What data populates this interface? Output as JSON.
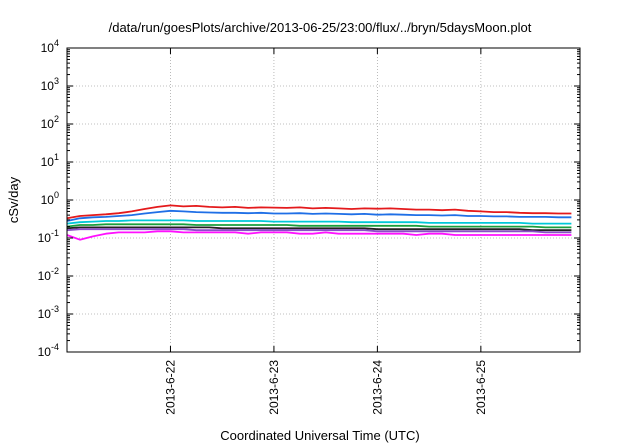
{
  "chart_data": {
    "type": "line",
    "title": "/data/run/goesPlots/archive/2013-06-25/23:00/flux/../bryn/5daysMoon.plot",
    "xlabel": "Coordinated Universal Time (UTC)",
    "ylabel": "cSv/day",
    "yscale": "log",
    "ylim": [
      0.0001,
      10000
    ],
    "ytick_base": "10",
    "ytick_exponents": [
      "-4",
      "-3",
      "-2",
      "-1",
      "0",
      "1",
      "2",
      "3",
      "4"
    ],
    "xlim": [
      "2013-06-21T00:00",
      "2013-06-25T23:00"
    ],
    "xticks": [
      "2013-6-22",
      "2013-6-23",
      "2013-6-24",
      "2013-6-25"
    ],
    "grid": true,
    "x": [
      "2013-06-21T00:00",
      "2013-06-21T03:00",
      "2013-06-21T06:00",
      "2013-06-21T09:00",
      "2013-06-21T12:00",
      "2013-06-21T15:00",
      "2013-06-21T18:00",
      "2013-06-21T21:00",
      "2013-06-22T00:00",
      "2013-06-22T03:00",
      "2013-06-22T06:00",
      "2013-06-22T09:00",
      "2013-06-22T12:00",
      "2013-06-22T15:00",
      "2013-06-22T18:00",
      "2013-06-22T21:00",
      "2013-06-23T00:00",
      "2013-06-23T03:00",
      "2013-06-23T06:00",
      "2013-06-23T09:00",
      "2013-06-23T12:00",
      "2013-06-23T15:00",
      "2013-06-23T18:00",
      "2013-06-23T21:00",
      "2013-06-24T00:00",
      "2013-06-24T03:00",
      "2013-06-24T06:00",
      "2013-06-24T09:00",
      "2013-06-24T12:00",
      "2013-06-24T15:00",
      "2013-06-24T18:00",
      "2013-06-24T21:00",
      "2013-06-25T00:00",
      "2013-06-25T03:00",
      "2013-06-25T06:00",
      "2013-06-25T09:00",
      "2013-06-25T12:00",
      "2013-06-25T15:00",
      "2013-06-25T18:00",
      "2013-06-25T21:00"
    ],
    "series": [
      {
        "color": "#e41a1c",
        "values": [
          0.33,
          0.38,
          0.4,
          0.42,
          0.45,
          0.5,
          0.58,
          0.66,
          0.72,
          0.68,
          0.7,
          0.66,
          0.64,
          0.66,
          0.62,
          0.64,
          0.63,
          0.62,
          0.64,
          0.6,
          0.62,
          0.6,
          0.58,
          0.6,
          0.59,
          0.6,
          0.58,
          0.56,
          0.56,
          0.54,
          0.56,
          0.52,
          0.5,
          0.48,
          0.48,
          0.46,
          0.45,
          0.45,
          0.44,
          0.44
        ]
      },
      {
        "color": "#1f6fe6",
        "values": [
          0.28,
          0.33,
          0.35,
          0.36,
          0.38,
          0.4,
          0.44,
          0.48,
          0.52,
          0.5,
          0.48,
          0.47,
          0.46,
          0.46,
          0.45,
          0.46,
          0.44,
          0.44,
          0.45,
          0.43,
          0.44,
          0.43,
          0.42,
          0.43,
          0.41,
          0.42,
          0.41,
          0.4,
          0.4,
          0.39,
          0.4,
          0.38,
          0.38,
          0.37,
          0.37,
          0.36,
          0.36,
          0.36,
          0.35,
          0.35
        ]
      },
      {
        "color": "#00c8d8",
        "values": [
          0.24,
          0.26,
          0.27,
          0.28,
          0.28,
          0.29,
          0.29,
          0.29,
          0.29,
          0.29,
          0.28,
          0.28,
          0.28,
          0.28,
          0.28,
          0.28,
          0.27,
          0.27,
          0.27,
          0.27,
          0.27,
          0.27,
          0.26,
          0.26,
          0.26,
          0.26,
          0.26,
          0.26,
          0.25,
          0.25,
          0.25,
          0.25,
          0.25,
          0.25,
          0.25,
          0.25,
          0.24,
          0.24,
          0.24,
          0.24
        ]
      },
      {
        "color": "#1a9e3c",
        "values": [
          0.2,
          0.22,
          0.22,
          0.23,
          0.23,
          0.23,
          0.23,
          0.23,
          0.23,
          0.23,
          0.22,
          0.22,
          0.22,
          0.22,
          0.22,
          0.22,
          0.22,
          0.22,
          0.21,
          0.21,
          0.21,
          0.21,
          0.21,
          0.21,
          0.21,
          0.21,
          0.21,
          0.21,
          0.2,
          0.2,
          0.2,
          0.2,
          0.2,
          0.2,
          0.2,
          0.2,
          0.2,
          0.19,
          0.19,
          0.19
        ]
      },
      {
        "color": "#222222",
        "values": [
          0.18,
          0.19,
          0.19,
          0.19,
          0.19,
          0.19,
          0.19,
          0.19,
          0.19,
          0.19,
          0.19,
          0.19,
          0.18,
          0.18,
          0.18,
          0.18,
          0.18,
          0.18,
          0.18,
          0.18,
          0.18,
          0.18,
          0.18,
          0.18,
          0.17,
          0.17,
          0.17,
          0.17,
          0.17,
          0.17,
          0.17,
          0.17,
          0.17,
          0.17,
          0.17,
          0.17,
          0.16,
          0.16,
          0.16,
          0.16
        ]
      },
      {
        "color": "#8b4fc8",
        "values": [
          0.16,
          0.17,
          0.17,
          0.17,
          0.17,
          0.17,
          0.17,
          0.17,
          0.17,
          0.17,
          0.16,
          0.16,
          0.16,
          0.16,
          0.16,
          0.16,
          0.16,
          0.16,
          0.16,
          0.16,
          0.16,
          0.16,
          0.16,
          0.16,
          0.15,
          0.15,
          0.15,
          0.15,
          0.15,
          0.15,
          0.15,
          0.15,
          0.15,
          0.15,
          0.15,
          0.15,
          0.15,
          0.14,
          0.14,
          0.14
        ]
      },
      {
        "color": "#ff10ff",
        "values": [
          0.12,
          0.09,
          0.11,
          0.13,
          0.14,
          0.14,
          0.14,
          0.15,
          0.15,
          0.14,
          0.14,
          0.14,
          0.14,
          0.14,
          0.13,
          0.14,
          0.14,
          0.14,
          0.13,
          0.13,
          0.14,
          0.13,
          0.13,
          0.13,
          0.13,
          0.13,
          0.13,
          0.12,
          0.13,
          0.13,
          0.12,
          0.12,
          0.12,
          0.12,
          0.12,
          0.12,
          0.12,
          0.12,
          0.12,
          0.12
        ]
      }
    ]
  }
}
